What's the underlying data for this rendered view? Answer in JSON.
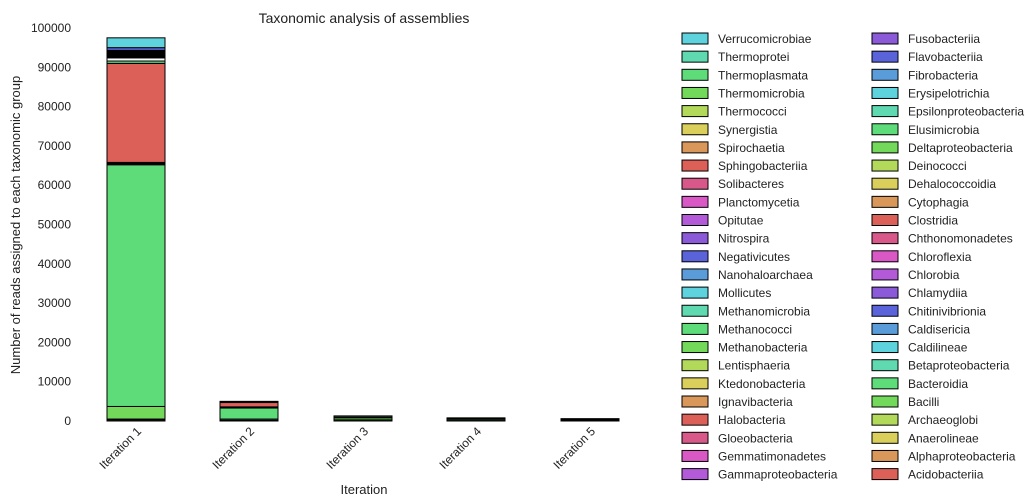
{
  "chart_data": {
    "type": "bar",
    "stacked": true,
    "title": "Taxonomic analysis of assemblies",
    "xlabel": "Iteration",
    "ylabel": "Number of reads assigned to each taxonomic group",
    "ylim": [
      0,
      100000
    ],
    "yticks": [
      0,
      10000,
      20000,
      30000,
      40000,
      50000,
      60000,
      70000,
      80000,
      90000,
      100000
    ],
    "ytick_labels": [
      "0",
      "10000",
      "20000",
      "30000",
      "40000",
      "50000",
      "60000",
      "70000",
      "80000",
      "90000",
      "100000"
    ],
    "grid": false,
    "legend_position": "right",
    "categories": [
      "Iteration 1",
      "Iteration 2",
      "Iteration 3",
      "Iteration 4",
      "Iteration 5"
    ],
    "legend": [
      {
        "name": "Verrucomicrobiae",
        "color": "#5ed3de"
      },
      {
        "name": "Thermoprotei",
        "color": "#5ed9b0"
      },
      {
        "name": "Thermoplasmata",
        "color": "#5edc7a"
      },
      {
        "name": "Thermomicrobia",
        "color": "#73d95a"
      },
      {
        "name": "Thermococci",
        "color": "#b3d95a"
      },
      {
        "name": "Synergistia",
        "color": "#d9cf5a"
      },
      {
        "name": "Spirochaetia",
        "color": "#d9985a"
      },
      {
        "name": "Sphingobacteriia",
        "color": "#dc6058"
      },
      {
        "name": "Solibacteres",
        "color": "#d9588a"
      },
      {
        "name": "Planctomycetia",
        "color": "#d958c6"
      },
      {
        "name": "Opitutae",
        "color": "#b35ad9"
      },
      {
        "name": "Nitrospira",
        "color": "#8a5ad9"
      },
      {
        "name": "Negativicutes",
        "color": "#5a63d9"
      },
      {
        "name": "Nanohaloarchaea",
        "color": "#5a9bd9"
      },
      {
        "name": "Mollicutes",
        "color": "#5ed3de"
      },
      {
        "name": "Methanomicrobia",
        "color": "#5ed9b0"
      },
      {
        "name": "Methanococci",
        "color": "#5edc7a"
      },
      {
        "name": "Methanobacteria",
        "color": "#73d95a"
      },
      {
        "name": "Lentisphaeria",
        "color": "#b3d95a"
      },
      {
        "name": "Ktedonobacteria",
        "color": "#d9cf5a"
      },
      {
        "name": "Ignavibacteria",
        "color": "#d9985a"
      },
      {
        "name": "Halobacteria",
        "color": "#dc6058"
      },
      {
        "name": "Gloeobacteria",
        "color": "#d9588a"
      },
      {
        "name": "Gemmatimonadetes",
        "color": "#d958c6"
      },
      {
        "name": "Gammaproteobacteria",
        "color": "#b35ad9"
      },
      {
        "name": "Fusobacteriia",
        "color": "#8a5ad9"
      },
      {
        "name": "Flavobacteriia",
        "color": "#5a63d9"
      },
      {
        "name": "Fibrobacteria",
        "color": "#5a9bd9"
      },
      {
        "name": "Erysipelotrichia",
        "color": "#5ed3de"
      },
      {
        "name": "Epsilonproteobacteria",
        "color": "#5ed9b0"
      },
      {
        "name": "Elusimicrobia",
        "color": "#5edc7a"
      },
      {
        "name": "Deltaproteobacteria",
        "color": "#73d95a"
      },
      {
        "name": "Deinococci",
        "color": "#b3d95a"
      },
      {
        "name": "Dehalococcoidia",
        "color": "#d9cf5a"
      },
      {
        "name": "Cytophagia",
        "color": "#d9985a"
      },
      {
        "name": "Clostridia",
        "color": "#dc6058"
      },
      {
        "name": "Chthonomonadetes",
        "color": "#d9588a"
      },
      {
        "name": "Chloroflexia",
        "color": "#d958c6"
      },
      {
        "name": "Chlorobia",
        "color": "#b35ad9"
      },
      {
        "name": "Chlamydiia",
        "color": "#8a5ad9"
      },
      {
        "name": "Chitinivibrionia",
        "color": "#5a63d9"
      },
      {
        "name": "Caldisericia",
        "color": "#5a9bd9"
      },
      {
        "name": "Caldilineae",
        "color": "#5ed3de"
      },
      {
        "name": "Betaproteobacteria",
        "color": "#5ed9b0"
      },
      {
        "name": "Bacteroidia",
        "color": "#5edc7a"
      },
      {
        "name": "Bacilli",
        "color": "#73d95a"
      },
      {
        "name": "Archaeoglobi",
        "color": "#b3d95a"
      },
      {
        "name": "Anaerolineae",
        "color": "#d9cf5a"
      },
      {
        "name": "Alphaproteobacteria",
        "color": "#d9985a"
      },
      {
        "name": "Acidobacteriia",
        "color": "#dc6058"
      }
    ],
    "stacks": [
      [
        {
          "value": 300,
          "color": "#dc6058"
        },
        {
          "value": 200,
          "color": "#d9985a"
        },
        {
          "value": 3200,
          "color": "#73d95a"
        },
        {
          "value": 61500,
          "color": "#5edc7a"
        },
        {
          "value": 600,
          "color": "#000000"
        },
        {
          "value": 25200,
          "color": "#dc6058"
        },
        {
          "value": 600,
          "color": "#5edc7a"
        },
        {
          "value": 800,
          "color": "#ffffff"
        },
        {
          "value": 1900,
          "color": "#000000"
        },
        {
          "value": 700,
          "color": "#5a63d9"
        },
        {
          "value": 2500,
          "color": "#5ed3de"
        }
      ],
      [
        {
          "value": 200,
          "color": "#dc6058"
        },
        {
          "value": 300,
          "color": "#5ed9b0"
        },
        {
          "value": 2800,
          "color": "#5edc7a"
        },
        {
          "value": 300,
          "color": "#000000"
        },
        {
          "value": 1100,
          "color": "#dc6058"
        },
        {
          "value": 300,
          "color": "#000000"
        }
      ],
      [
        {
          "value": 300,
          "color": "#5edc7a"
        },
        {
          "value": 500,
          "color": "#73d95a"
        },
        {
          "value": 200,
          "color": "#000000"
        },
        {
          "value": 300,
          "color": "#5edc7a"
        }
      ],
      [
        {
          "value": 300,
          "color": "#5edc7a"
        },
        {
          "value": 300,
          "color": "#73d95a"
        },
        {
          "value": 200,
          "color": "#000000"
        }
      ],
      [
        {
          "value": 200,
          "color": "#000000"
        },
        {
          "value": 200,
          "color": "#5edc7a"
        },
        {
          "value": 200,
          "color": "#000000"
        }
      ]
    ]
  }
}
